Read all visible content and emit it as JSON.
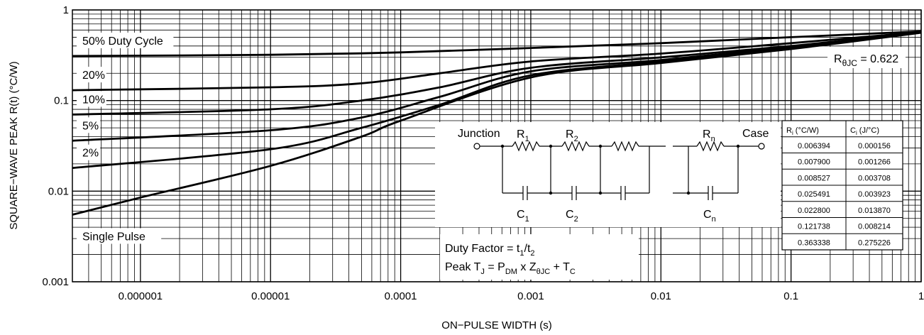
{
  "chart_data": {
    "type": "line",
    "xscale": "log",
    "yscale": "log",
    "xlim": [
      3e-07,
      1
    ],
    "ylim": [
      0.001,
      1
    ],
    "xlabel": "ON−PULSE WIDTH (s)",
    "ylabel": "SQUARE−WAVE PEAK R(t) (°C/W)",
    "x_ticks": [
      {
        "value": 1e-06,
        "label": "0.000001"
      },
      {
        "value": 1e-05,
        "label": "0.00001"
      },
      {
        "value": 0.0001,
        "label": "0.0001"
      },
      {
        "value": 0.001,
        "label": "0.001"
      },
      {
        "value": 0.01,
        "label": "0.01"
      },
      {
        "value": 0.1,
        "label": "0.1"
      },
      {
        "value": 1,
        "label": "1"
      }
    ],
    "y_ticks": [
      {
        "value": 0.001,
        "label": "0.001"
      },
      {
        "value": 0.01,
        "label": "0.01"
      },
      {
        "value": 0.1,
        "label": "0.1"
      },
      {
        "value": 1,
        "label": "1"
      }
    ],
    "grid": true,
    "series": [
      {
        "name": "50% Duty Cycle",
        "x": [
          3e-07,
          1e-05,
          0.0001,
          0.001,
          0.01,
          0.1,
          1
        ],
        "y": [
          0.31,
          0.32,
          0.34,
          0.38,
          0.43,
          0.5,
          0.58
        ]
      },
      {
        "name": "20%",
        "x": [
          3e-07,
          1e-05,
          5e-05,
          0.0002,
          0.001,
          0.01,
          0.1,
          1
        ],
        "y": [
          0.13,
          0.14,
          0.155,
          0.2,
          0.27,
          0.33,
          0.43,
          0.57
        ]
      },
      {
        "name": "10%",
        "x": [
          3e-07,
          1e-05,
          5e-05,
          0.0002,
          0.001,
          0.01,
          0.1,
          1
        ],
        "y": [
          0.07,
          0.08,
          0.1,
          0.14,
          0.23,
          0.3,
          0.4,
          0.57
        ]
      },
      {
        "name": "5%",
        "x": [
          3e-07,
          1e-05,
          5e-05,
          0.0002,
          0.001,
          0.01,
          0.1,
          1
        ],
        "y": [
          0.036,
          0.047,
          0.065,
          0.11,
          0.21,
          0.28,
          0.39,
          0.57
        ]
      },
      {
        "name": "2%",
        "x": [
          3e-07,
          1e-05,
          5e-05,
          0.0002,
          0.001,
          0.01,
          0.1,
          1
        ],
        "y": [
          0.018,
          0.029,
          0.05,
          0.09,
          0.19,
          0.27,
          0.38,
          0.57
        ]
      },
      {
        "name": "Single Pulse",
        "x": [
          3e-07,
          1e-06,
          1e-05,
          5e-05,
          0.0001,
          0.001,
          0.01,
          0.1,
          1
        ],
        "y": [
          0.0055,
          0.0085,
          0.019,
          0.04,
          0.06,
          0.18,
          0.26,
          0.37,
          0.56
        ]
      }
    ],
    "rthjc_label": {
      "main": "R",
      "sub": "θJC",
      "value": " = 0.622"
    },
    "circuit": {
      "junction": "Junction",
      "case": "Case",
      "r": "R",
      "c": "C",
      "subs": [
        "1",
        "2",
        "n"
      ]
    },
    "duty_box": {
      "line1_a": "Duty Factor = t",
      "line1_sub1": "1",
      "line1_b": "/t",
      "line1_sub2": "2",
      "line2_a": "Peak T",
      "line2_sub1": "J",
      "line2_b": " = P",
      "line2_sub2": "DM",
      "line2_c": " x Z",
      "line2_sub3": "θJC",
      "line2_d": " + T",
      "line2_sub4": "C"
    },
    "rc_table": {
      "headers": [
        {
          "main": "R",
          "sub": "i",
          "rest": " (°C/W)"
        },
        {
          "main": "C",
          "sub": "i",
          "rest": " (J/°C)"
        }
      ],
      "rows": [
        [
          "0.006394",
          "0.000156"
        ],
        [
          "0.007900",
          "0.001266"
        ],
        [
          "0.008527",
          "0.003708"
        ],
        [
          "0.025491",
          "0.003923"
        ],
        [
          "0.022800",
          "0.013870"
        ],
        [
          "0.121738",
          "0.008214"
        ],
        [
          "0.363338",
          "0.275226"
        ]
      ]
    }
  }
}
